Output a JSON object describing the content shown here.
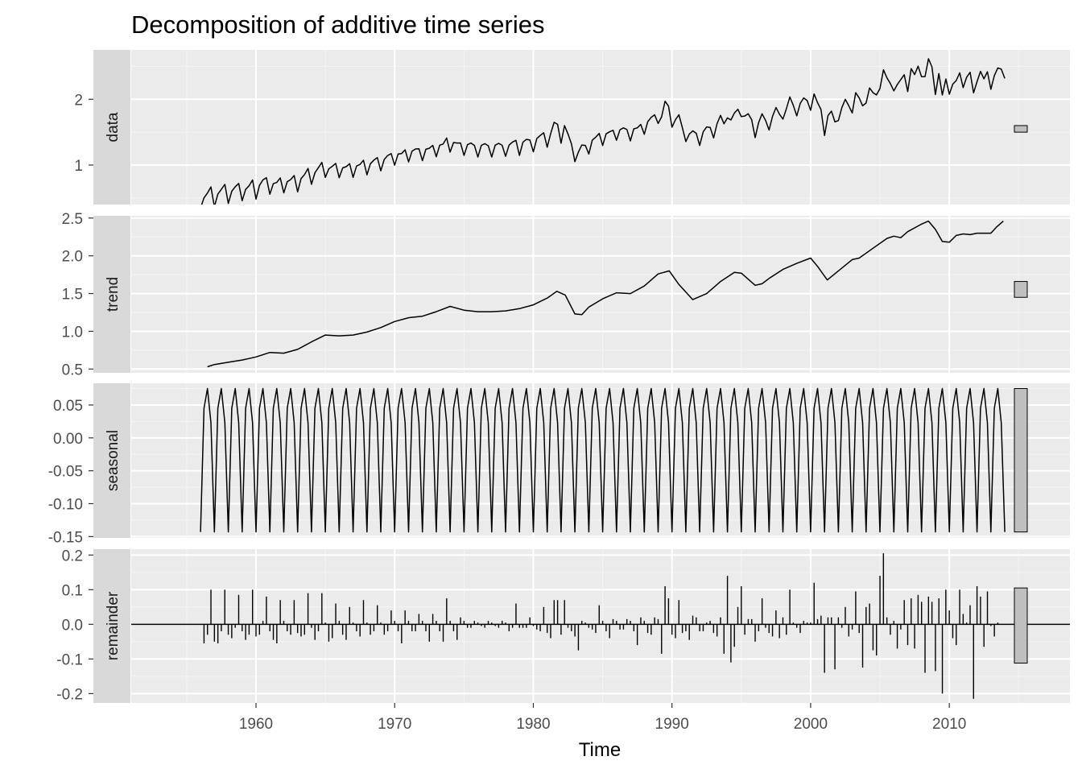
{
  "chart_data": {
    "type": "line",
    "title": "Decomposition of additive time series",
    "xlabel": "Time",
    "xlim": [
      1951,
      2018.7
    ],
    "x_ticks": [
      1960,
      1970,
      1980,
      1990,
      2000,
      2010
    ],
    "x_tick_labels": [
      "1960",
      "1970",
      "1980",
      "1990",
      "2000",
      "2010"
    ],
    "start": 1956.0,
    "frequency": 4,
    "legend": "none",
    "grid": true,
    "panels": [
      {
        "name": "data",
        "kind": "line",
        "ylim": [
          0.4,
          2.75
        ],
        "y_ticks": [
          1,
          2
        ],
        "y_tick_labels": [
          "1",
          "2"
        ],
        "scale_bar": [
          1.5,
          1.6
        ]
      },
      {
        "name": "trend",
        "kind": "line",
        "ylim": [
          0.45,
          2.53
        ],
        "y_ticks": [
          0.5,
          1.0,
          1.5,
          2.0,
          2.5
        ],
        "y_tick_labels": [
          "0.5",
          "1.0",
          "1.5",
          "2.0",
          "2.5"
        ],
        "scale_bar": [
          1.45,
          1.66
        ]
      },
      {
        "name": "seasonal",
        "kind": "line",
        "ylim": [
          -0.152,
          0.083
        ],
        "y_ticks": [
          -0.15,
          -0.1,
          -0.05,
          0.0,
          0.05
        ],
        "y_tick_labels": [
          "-0.15",
          "-0.10",
          "-0.05",
          "0.00",
          "0.05"
        ],
        "seasonal_pattern": [
          -0.143,
          0.045,
          0.075,
          0.023
        ],
        "scale_bar": [
          -0.143,
          0.075
        ]
      },
      {
        "name": "remainder",
        "kind": "bar",
        "ylim": [
          -0.227,
          0.217
        ],
        "y_ticks": [
          -0.2,
          -0.1,
          0.0,
          0.1,
          0.2
        ],
        "y_tick_labels": [
          "-0.2",
          "-0.1",
          "0.0",
          "0.1",
          "0.2"
        ],
        "baseline": 0,
        "scale_bar": [
          -0.112,
          0.105
        ]
      }
    ],
    "trend_series": [
      [
        1956.5,
        0.53
      ],
      [
        1957.0,
        0.56
      ],
      [
        1958.0,
        0.59
      ],
      [
        1959.0,
        0.62
      ],
      [
        1960.0,
        0.66
      ],
      [
        1961.0,
        0.72
      ],
      [
        1962.0,
        0.71
      ],
      [
        1963.0,
        0.76
      ],
      [
        1964.0,
        0.86
      ],
      [
        1965.0,
        0.95
      ],
      [
        1966.0,
        0.94
      ],
      [
        1967.0,
        0.95
      ],
      [
        1968.0,
        0.99
      ],
      [
        1969.0,
        1.05
      ],
      [
        1970.0,
        1.13
      ],
      [
        1971.0,
        1.18
      ],
      [
        1972.0,
        1.2
      ],
      [
        1973.0,
        1.26
      ],
      [
        1974.0,
        1.33
      ],
      [
        1975.0,
        1.28
      ],
      [
        1976.0,
        1.26
      ],
      [
        1977.0,
        1.26
      ],
      [
        1978.0,
        1.27
      ],
      [
        1979.0,
        1.3
      ],
      [
        1980.0,
        1.35
      ],
      [
        1981.0,
        1.44
      ],
      [
        1981.7,
        1.53
      ],
      [
        1982.3,
        1.48
      ],
      [
        1983.0,
        1.23
      ],
      [
        1983.5,
        1.22
      ],
      [
        1984.0,
        1.32
      ],
      [
        1985.0,
        1.43
      ],
      [
        1986.0,
        1.51
      ],
      [
        1987.0,
        1.5
      ],
      [
        1988.0,
        1.6
      ],
      [
        1989.0,
        1.76
      ],
      [
        1989.8,
        1.8
      ],
      [
        1990.5,
        1.62
      ],
      [
        1991.5,
        1.42
      ],
      [
        1992.5,
        1.5
      ],
      [
        1993.5,
        1.66
      ],
      [
        1994.5,
        1.78
      ],
      [
        1995.0,
        1.77
      ],
      [
        1996.0,
        1.61
      ],
      [
        1996.5,
        1.63
      ],
      [
        1997.0,
        1.7
      ],
      [
        1998.0,
        1.82
      ],
      [
        1999.0,
        1.9
      ],
      [
        2000.0,
        1.97
      ],
      [
        2000.5,
        1.86
      ],
      [
        2001.2,
        1.68
      ],
      [
        2002.0,
        1.8
      ],
      [
        2003.0,
        1.95
      ],
      [
        2003.5,
        1.97
      ],
      [
        2004.5,
        2.1
      ],
      [
        2005.5,
        2.23
      ],
      [
        2006.0,
        2.26
      ],
      [
        2006.5,
        2.24
      ],
      [
        2007.0,
        2.32
      ],
      [
        2008.0,
        2.42
      ],
      [
        2008.5,
        2.46
      ],
      [
        2009.0,
        2.35
      ],
      [
        2009.5,
        2.19
      ],
      [
        2010.0,
        2.18
      ],
      [
        2010.5,
        2.27
      ],
      [
        2011.0,
        2.29
      ],
      [
        2011.5,
        2.28
      ],
      [
        2012.0,
        2.3
      ],
      [
        2013.0,
        2.3
      ],
      [
        2013.4,
        2.38
      ],
      [
        2013.9,
        2.46
      ]
    ],
    "remainder_series": [
      [
        1956.25,
        -0.055
      ],
      [
        1956.5,
        -0.03
      ],
      [
        1956.75,
        0.1
      ],
      [
        1957.0,
        -0.05
      ],
      [
        1957.25,
        -0.055
      ],
      [
        1957.5,
        -0.02
      ],
      [
        1957.75,
        0.1
      ],
      [
        1958.0,
        -0.03
      ],
      [
        1958.25,
        -0.04
      ],
      [
        1958.5,
        -0.01
      ],
      [
        1958.75,
        0.085
      ],
      [
        1959.0,
        -0.02
      ],
      [
        1959.25,
        -0.045
      ],
      [
        1959.5,
        -0.03
      ],
      [
        1959.75,
        0.1
      ],
      [
        1960.0,
        -0.035
      ],
      [
        1960.25,
        -0.03
      ],
      [
        1960.5,
        0.01
      ],
      [
        1960.75,
        0.08
      ],
      [
        1961.0,
        -0.02
      ],
      [
        1961.25,
        -0.045
      ],
      [
        1961.5,
        -0.055
      ],
      [
        1961.75,
        0.07
      ],
      [
        1962.0,
        0.01
      ],
      [
        1962.25,
        -0.02
      ],
      [
        1962.5,
        -0.03
      ],
      [
        1962.75,
        0.07
      ],
      [
        1963.0,
        -0.025
      ],
      [
        1963.25,
        -0.035
      ],
      [
        1963.5,
        -0.03
      ],
      [
        1963.75,
        0.09
      ],
      [
        1964.0,
        -0.01
      ],
      [
        1964.25,
        -0.045
      ],
      [
        1964.5,
        -0.02
      ],
      [
        1964.75,
        0.09
      ],
      [
        1965.0,
        0.005
      ],
      [
        1965.25,
        -0.05
      ],
      [
        1965.5,
        -0.04
      ],
      [
        1965.75,
        0.06
      ],
      [
        1966.0,
        0.01
      ],
      [
        1966.25,
        -0.03
      ],
      [
        1966.5,
        -0.045
      ],
      [
        1966.75,
        0.05
      ],
      [
        1967.0,
        0.005
      ],
      [
        1967.25,
        -0.02
      ],
      [
        1967.5,
        -0.035
      ],
      [
        1967.75,
        0.07
      ],
      [
        1968.0,
        0.005
      ],
      [
        1968.25,
        -0.03
      ],
      [
        1968.5,
        -0.02
      ],
      [
        1968.75,
        0.055
      ],
      [
        1969.0,
        0.005
      ],
      [
        1969.25,
        -0.03
      ],
      [
        1969.5,
        -0.02
      ],
      [
        1969.75,
        0.04
      ],
      [
        1970.0,
        0.01
      ],
      [
        1970.25,
        -0.02
      ],
      [
        1970.5,
        -0.055
      ],
      [
        1970.75,
        0.04
      ],
      [
        1971.0,
        0.01
      ],
      [
        1971.25,
        -0.02
      ],
      [
        1971.5,
        -0.02
      ],
      [
        1971.75,
        0.03
      ],
      [
        1972.0,
        0.01
      ],
      [
        1972.25,
        -0.02
      ],
      [
        1972.5,
        -0.05
      ],
      [
        1972.75,
        0.03
      ],
      [
        1973.0,
        0.01
      ],
      [
        1973.25,
        -0.02
      ],
      [
        1973.5,
        -0.05
      ],
      [
        1973.75,
        0.075
      ],
      [
        1974.0,
        0.01
      ],
      [
        1974.25,
        -0.02
      ],
      [
        1974.5,
        -0.045
      ],
      [
        1974.75,
        0.02
      ],
      [
        1975.0,
        0.01
      ],
      [
        1975.25,
        -0.01
      ],
      [
        1975.5,
        -0.01
      ],
      [
        1975.75,
        0.01
      ],
      [
        1976.0,
        0.005
      ],
      [
        1976.25,
        -0.005
      ],
      [
        1976.5,
        -0.01
      ],
      [
        1976.75,
        0.01
      ],
      [
        1977.0,
        0.005
      ],
      [
        1977.25,
        -0.005
      ],
      [
        1977.5,
        -0.01
      ],
      [
        1977.75,
        0.01
      ],
      [
        1978.0,
        0.005
      ],
      [
        1978.25,
        -0.02
      ],
      [
        1978.5,
        -0.01
      ],
      [
        1978.75,
        0.06
      ],
      [
        1979.0,
        -0.01
      ],
      [
        1979.25,
        -0.01
      ],
      [
        1979.5,
        -0.01
      ],
      [
        1979.75,
        0.02
      ],
      [
        1980.0,
        -0.005
      ],
      [
        1980.25,
        -0.015
      ],
      [
        1980.5,
        -0.02
      ],
      [
        1980.75,
        0.05
      ],
      [
        1981.0,
        -0.025
      ],
      [
        1981.25,
        -0.04
      ],
      [
        1981.5,
        0.07
      ],
      [
        1981.75,
        0.07
      ],
      [
        1982.0,
        -0.03
      ],
      [
        1982.25,
        0.07
      ],
      [
        1982.5,
        -0.01
      ],
      [
        1982.75,
        -0.02
      ],
      [
        1983.0,
        -0.035
      ],
      [
        1983.25,
        -0.075
      ],
      [
        1983.5,
        0.01
      ],
      [
        1983.75,
        0.005
      ],
      [
        1984.0,
        -0.01
      ],
      [
        1984.25,
        -0.015
      ],
      [
        1984.5,
        -0.025
      ],
      [
        1984.75,
        0.055
      ],
      [
        1985.0,
        0.01
      ],
      [
        1985.25,
        -0.02
      ],
      [
        1985.5,
        -0.04
      ],
      [
        1985.75,
        0.015
      ],
      [
        1986.0,
        0.01
      ],
      [
        1986.25,
        -0.015
      ],
      [
        1986.5,
        -0.015
      ],
      [
        1986.75,
        0.015
      ],
      [
        1987.0,
        0.01
      ],
      [
        1987.25,
        -0.02
      ],
      [
        1987.5,
        -0.06
      ],
      [
        1987.75,
        0.02
      ],
      [
        1988.0,
        0.01
      ],
      [
        1988.25,
        -0.025
      ],
      [
        1988.5,
        -0.03
      ],
      [
        1988.75,
        0.02
      ],
      [
        1989.0,
        0.015
      ],
      [
        1989.25,
        -0.085
      ],
      [
        1989.5,
        0.11
      ],
      [
        1989.75,
        0.075
      ],
      [
        1990.0,
        -0.03
      ],
      [
        1990.25,
        -0.04
      ],
      [
        1990.5,
        0.07
      ],
      [
        1990.75,
        -0.025
      ],
      [
        1991.0,
        -0.02
      ],
      [
        1991.25,
        -0.045
      ],
      [
        1991.5,
        0.025
      ],
      [
        1991.75,
        0.02
      ],
      [
        1992.0,
        -0.02
      ],
      [
        1992.25,
        -0.02
      ],
      [
        1992.5,
        0.005
      ],
      [
        1992.75,
        0.01
      ],
      [
        1993.0,
        -0.025
      ],
      [
        1993.25,
        -0.035
      ],
      [
        1993.5,
        0.02
      ],
      [
        1993.75,
        -0.085
      ],
      [
        1994.0,
        0.14
      ],
      [
        1994.25,
        -0.11
      ],
      [
        1994.5,
        -0.065
      ],
      [
        1994.75,
        0.05
      ],
      [
        1995.0,
        0.11
      ],
      [
        1995.25,
        -0.03
      ],
      [
        1995.5,
        0.015
      ],
      [
        1995.75,
        0.015
      ],
      [
        1996.0,
        -0.05
      ],
      [
        1996.25,
        -0.02
      ],
      [
        1996.5,
        0.075
      ],
      [
        1996.75,
        -0.01
      ],
      [
        1997.0,
        -0.025
      ],
      [
        1997.25,
        -0.035
      ],
      [
        1997.5,
        0.04
      ],
      [
        1997.75,
        -0.04
      ],
      [
        1998.0,
        0.02
      ],
      [
        1998.25,
        -0.03
      ],
      [
        1998.5,
        0.1
      ],
      [
        1998.75,
        0.005
      ],
      [
        1999.0,
        -0.01
      ],
      [
        1999.25,
        -0.025
      ],
      [
        1999.5,
        0.01
      ],
      [
        1999.75,
        0.005
      ],
      [
        2000.0,
        0.005
      ],
      [
        2000.25,
        0.12
      ],
      [
        2000.5,
        0.015
      ],
      [
        2000.75,
        0.025
      ],
      [
        2001.0,
        -0.14
      ],
      [
        2001.25,
        0.02
      ],
      [
        2001.5,
        0.02
      ],
      [
        2001.75,
        -0.13
      ],
      [
        2002.0,
        0.02
      ],
      [
        2002.25,
        -0.01
      ],
      [
        2002.5,
        0.05
      ],
      [
        2002.75,
        -0.035
      ],
      [
        2003.0,
        -0.015
      ],
      [
        2003.25,
        0.095
      ],
      [
        2003.5,
        -0.025
      ],
      [
        2003.75,
        -0.125
      ],
      [
        2004.0,
        0.05
      ],
      [
        2004.25,
        0.06
      ],
      [
        2004.5,
        -0.075
      ],
      [
        2004.75,
        -0.09
      ],
      [
        2005.0,
        0.14
      ],
      [
        2005.25,
        0.205
      ],
      [
        2005.5,
        0.02
      ],
      [
        2005.75,
        -0.03
      ],
      [
        2006.0,
        0.01
      ],
      [
        2006.25,
        -0.07
      ],
      [
        2006.5,
        -0.015
      ],
      [
        2006.75,
        0.07
      ],
      [
        2007.0,
        -0.06
      ],
      [
        2007.25,
        0.075
      ],
      [
        2007.5,
        -0.07
      ],
      [
        2007.75,
        0.085
      ],
      [
        2008.0,
        0.065
      ],
      [
        2008.25,
        -0.14
      ],
      [
        2008.5,
        0.08
      ],
      [
        2008.75,
        0.065
      ],
      [
        2009.0,
        -0.135
      ],
      [
        2009.25,
        0.075
      ],
      [
        2009.5,
        -0.2
      ],
      [
        2009.75,
        0.1
      ],
      [
        2010.0,
        0.04
      ],
      [
        2010.25,
        -0.04
      ],
      [
        2010.5,
        -0.06
      ],
      [
        2010.75,
        0.1
      ],
      [
        2011.0,
        0.03
      ],
      [
        2011.25,
        0.005
      ],
      [
        2011.5,
        0.055
      ],
      [
        2011.75,
        -0.215
      ],
      [
        2012.0,
        0.11
      ],
      [
        2012.25,
        0.08
      ],
      [
        2012.5,
        -0.065
      ],
      [
        2012.75,
        0.095
      ],
      [
        2013.0,
        -0.005
      ],
      [
        2013.25,
        -0.035
      ],
      [
        2013.5,
        0.005
      ]
    ]
  }
}
